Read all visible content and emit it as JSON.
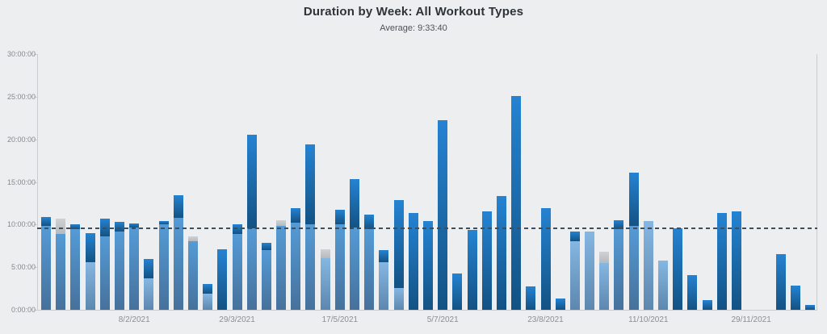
{
  "header": {
    "title": "Duration by Week: All Workout Types",
    "subtitle": "Average: 9:33:40"
  },
  "chart_data": {
    "type": "bar",
    "stacked": true,
    "title": "Duration by Week: All Workout Types",
    "subtitle": "Average: 9:33:40",
    "average_line": {
      "label": "Average: 9:33:40",
      "hours": 9.5611
    },
    "y_axis": {
      "unit": "h:mm:ss",
      "max_hours": 30,
      "tick_interval_hours": 5,
      "tick_labels": [
        "0:00:00",
        "5:00:00",
        "10:00:00",
        "15:00:00",
        "20:00:00",
        "25:00:00",
        "30:00:00"
      ]
    },
    "x_axis": {
      "tick_labels": [
        {
          "bar_index": 6,
          "label": "8/2/2021"
        },
        {
          "bar_index": 13,
          "label": "29/3/2021"
        },
        {
          "bar_index": 20,
          "label": "17/5/2021"
        },
        {
          "bar_index": 27,
          "label": "5/7/2021"
        },
        {
          "bar_index": 34,
          "label": "23/8/2021"
        },
        {
          "bar_index": 41,
          "label": "11/10/2021"
        },
        {
          "bar_index": 48,
          "label": "29/11/2021"
        }
      ]
    },
    "colors": {
      "light": [
        "#85b7e2",
        "#5d87ae"
      ],
      "medium": [
        "#559bd6",
        "#46719b"
      ],
      "dark": [
        "#2583d2",
        "#135283"
      ],
      "gray": [
        "#cfd2d4",
        "#b6babd"
      ]
    },
    "bars": [
      {
        "segments": [
          [
            "medium",
            9.8
          ],
          [
            "dark",
            1.05
          ]
        ]
      },
      {
        "segments": [
          [
            "medium",
            8.9
          ],
          [
            "gray",
            1.75
          ]
        ]
      },
      {
        "segments": [
          [
            "medium",
            9.5
          ],
          [
            "dark",
            0.5
          ]
        ]
      },
      {
        "segments": [
          [
            "light",
            5.6
          ],
          [
            "dark",
            3.4
          ]
        ]
      },
      {
        "segments": [
          [
            "medium",
            8.6
          ],
          [
            "dark",
            2.05
          ]
        ]
      },
      {
        "segments": [
          [
            "medium",
            9.2
          ],
          [
            "dark",
            1.1
          ]
        ]
      },
      {
        "segments": [
          [
            "medium",
            9.65
          ],
          [
            "dark",
            0.45
          ]
        ]
      },
      {
        "segments": [
          [
            "light",
            3.7
          ],
          [
            "dark",
            2.3
          ]
        ]
      },
      {
        "segments": [
          [
            "medium",
            10.0
          ],
          [
            "dark",
            0.4
          ]
        ]
      },
      {
        "segments": [
          [
            "medium",
            10.75
          ],
          [
            "dark",
            2.65
          ]
        ]
      },
      {
        "segments": [
          [
            "medium",
            8.0
          ],
          [
            "gray",
            0.6
          ]
        ]
      },
      {
        "segments": [
          [
            "light",
            1.9
          ],
          [
            "dark",
            1.1
          ]
        ]
      },
      {
        "segments": [
          [
            "dark",
            7.1
          ]
        ]
      },
      {
        "segments": [
          [
            "medium",
            8.9
          ],
          [
            "dark",
            1.1
          ]
        ]
      },
      {
        "segments": [
          [
            "medium",
            9.6
          ],
          [
            "dark",
            10.9
          ]
        ]
      },
      {
        "segments": [
          [
            "medium",
            7.0
          ],
          [
            "dark",
            0.85
          ]
        ]
      },
      {
        "segments": [
          [
            "medium",
            9.8
          ],
          [
            "gray",
            0.7
          ]
        ]
      },
      {
        "segments": [
          [
            "medium",
            10.2
          ],
          [
            "dark",
            1.7
          ]
        ]
      },
      {
        "segments": [
          [
            "medium",
            10.0
          ],
          [
            "dark",
            9.4
          ]
        ]
      },
      {
        "segments": [
          [
            "light",
            6.1
          ],
          [
            "gray",
            1.0
          ]
        ]
      },
      {
        "segments": [
          [
            "medium",
            10.0
          ],
          [
            "dark",
            1.75
          ]
        ]
      },
      {
        "segments": [
          [
            "medium",
            9.7
          ],
          [
            "dark",
            5.65
          ]
        ]
      },
      {
        "segments": [
          [
            "medium",
            9.5
          ],
          [
            "dark",
            1.7
          ]
        ]
      },
      {
        "segments": [
          [
            "light",
            5.6
          ],
          [
            "dark",
            1.4
          ]
        ]
      },
      {
        "segments": [
          [
            "light",
            2.6
          ],
          [
            "dark",
            10.25
          ]
        ]
      },
      {
        "segments": [
          [
            "dark",
            11.4
          ]
        ]
      },
      {
        "segments": [
          [
            "dark",
            10.45
          ]
        ]
      },
      {
        "segments": [
          [
            "dark",
            22.2
          ]
        ]
      },
      {
        "segments": [
          [
            "dark",
            4.25
          ]
        ]
      },
      {
        "segments": [
          [
            "dark",
            9.35
          ]
        ]
      },
      {
        "segments": [
          [
            "dark",
            11.55
          ]
        ]
      },
      {
        "segments": [
          [
            "dark",
            13.3
          ]
        ]
      },
      {
        "segments": [
          [
            "dark",
            25.1
          ]
        ]
      },
      {
        "segments": [
          [
            "dark",
            2.75
          ]
        ]
      },
      {
        "segments": [
          [
            "dark",
            11.9
          ]
        ]
      },
      {
        "segments": [
          [
            "dark",
            1.3
          ]
        ]
      },
      {
        "segments": [
          [
            "light",
            8.0
          ],
          [
            "dark",
            1.15
          ]
        ]
      },
      {
        "segments": [
          [
            "light",
            9.2
          ]
        ]
      },
      {
        "segments": [
          [
            "light",
            5.45
          ],
          [
            "gray",
            1.35
          ]
        ]
      },
      {
        "segments": [
          [
            "medium",
            9.5
          ],
          [
            "dark",
            1.05
          ]
        ]
      },
      {
        "segments": [
          [
            "medium",
            9.8
          ],
          [
            "dark",
            6.25
          ]
        ]
      },
      {
        "segments": [
          [
            "light",
            10.4
          ]
        ]
      },
      {
        "segments": [
          [
            "light",
            5.75
          ]
        ]
      },
      {
        "segments": [
          [
            "dark",
            9.6
          ]
        ]
      },
      {
        "segments": [
          [
            "dark",
            4.05
          ]
        ]
      },
      {
        "segments": [
          [
            "dark",
            1.15
          ]
        ]
      },
      {
        "segments": [
          [
            "dark",
            11.35
          ]
        ]
      },
      {
        "segments": [
          [
            "dark",
            11.55
          ]
        ]
      },
      {
        "segments": []
      },
      {
        "segments": []
      },
      {
        "segments": [
          [
            "dark",
            6.55
          ]
        ]
      },
      {
        "segments": [
          [
            "dark",
            2.8
          ]
        ]
      },
      {
        "segments": [
          [
            "dark",
            0.6
          ]
        ]
      }
    ]
  }
}
